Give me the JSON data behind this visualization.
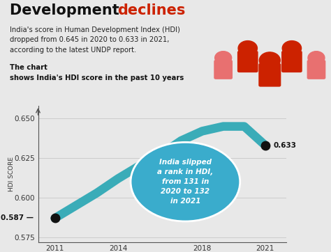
{
  "title_black": "Development ",
  "title_red": "declines",
  "subtitle_normal": "India's score in Human Development Index (HDI)\ndropped from 0.645 in 2020 to 0.633 in 2021,\naccording to the latest UNDP report. ",
  "subtitle_bold": "The chart\nshows India's HDI score in the past 10 years",
  "years": [
    2011,
    2012,
    2013,
    2014,
    2015,
    2016,
    2017,
    2018,
    2019,
    2020,
    2021
  ],
  "hdi_values": [
    0.587,
    0.595,
    0.603,
    0.612,
    0.62,
    0.627,
    0.636,
    0.642,
    0.645,
    0.645,
    0.633
  ],
  "line_color": "#3aacb8",
  "line_width": 9,
  "ylim": [
    0.572,
    0.658
  ],
  "yticks": [
    0.575,
    0.6,
    0.625,
    0.65
  ],
  "xticks": [
    2011,
    2014,
    2018,
    2021
  ],
  "xtick_labels": [
    "2011",
    "2014",
    "2018",
    "2021"
  ],
  "ylabel": "HDI SCORE",
  "annotation_start": "0.587",
  "annotation_end": "0.633",
  "bubble_text": "India slipped\na rank in HDI,\nfrom 131 in\n2020 to 132\nin 2021",
  "bubble_color": "#3aaccc",
  "bubble_text_color": "#ffffff",
  "bg_color": "#e8e8e8",
  "marker_color": "#111111",
  "marker_size": 9,
  "grid_color": "#cccccc",
  "people_color": "#cc2200",
  "people_color_light": "#e87070"
}
